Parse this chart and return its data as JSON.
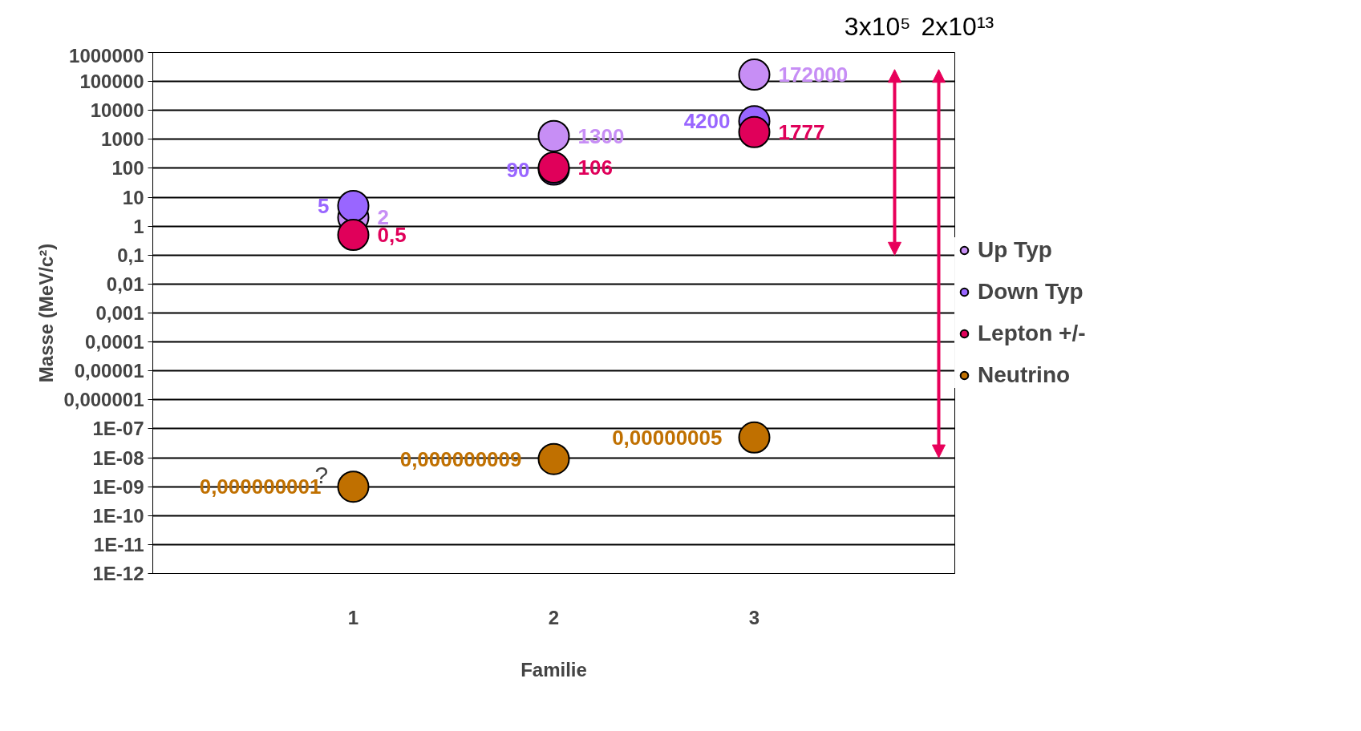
{
  "chart_data": {
    "type": "scatter",
    "xlabel": "Familie",
    "ylabel": "Masse (MeV/c²)",
    "categories": [
      "1",
      "2",
      "3"
    ],
    "series": [
      {
        "name": "Up Typ",
        "color": "#c78ef5",
        "values": [
          2,
          1300,
          172000
        ],
        "value_labels": [
          "2",
          "1300",
          "172000"
        ]
      },
      {
        "name": "Down Typ",
        "color": "#9966ff",
        "values": [
          5,
          90,
          4200
        ],
        "value_labels": [
          "5",
          "90",
          "4200"
        ]
      },
      {
        "name": "Lepton +/-",
        "color": "#e0005a",
        "values": [
          0.5,
          106,
          1777
        ],
        "value_labels": [
          "0,5",
          "106",
          "1777"
        ]
      },
      {
        "name": "Neutrino",
        "color": "#c07000",
        "values": [
          1e-09,
          9e-09,
          5e-08
        ],
        "value_labels": [
          "0,000000001",
          "0,000000009",
          "0,00000005"
        ]
      }
    ],
    "log": "y",
    "ylim": [
      1e-12,
      1000000
    ],
    "yticks": [
      {
        "value": 1e-12,
        "label": "1E-12"
      },
      {
        "value": 1e-11,
        "label": "1E-11"
      },
      {
        "value": 1e-10,
        "label": "1E-10"
      },
      {
        "value": 1e-09,
        "label": "1E-09"
      },
      {
        "value": 1e-08,
        "label": "1E-08"
      },
      {
        "value": 1e-07,
        "label": "1E-07"
      },
      {
        "value": 1e-06,
        "label": "0,000001"
      },
      {
        "value": 1e-05,
        "label": "0,00001"
      },
      {
        "value": 0.0001,
        "label": "0,0001"
      },
      {
        "value": 0.001,
        "label": "0,001"
      },
      {
        "value": 0.01,
        "label": "0,01"
      },
      {
        "value": 0.1,
        "label": "0,1"
      },
      1,
      10,
      100,
      1000,
      10000,
      100000,
      1000000
    ],
    "grid": "y",
    "legend": "right",
    "marker": "circle",
    "annotations": [
      {
        "text": "?",
        "x": "1",
        "y": 1e-09
      },
      "3x10⁵",
      "2x10¹³"
    ]
  }
}
